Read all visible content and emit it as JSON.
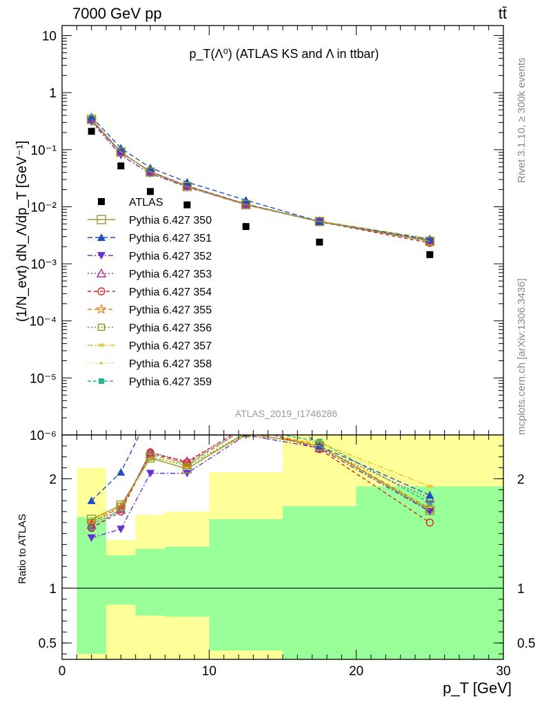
{
  "header": {
    "left": "7000 GeV pp",
    "right": "tt̄"
  },
  "side_texts": {
    "rivet": "Rivet 3.1.10, ≥ 300k events",
    "mcplots": "mcplots.cern.ch [arXiv:1306.3436]"
  },
  "chart_data": {
    "type": "scatter",
    "title": "p_T(Λ⁰) (ATLAS KS and Λ in ttbar)",
    "analysis_id": "ATLAS_2019_I1746286",
    "xlabel": "p_T [GeV]",
    "ylabel": "(1/N_evt) dN_Λ/dp_T [GeV⁻¹]",
    "ratio_ylabel": "Ratio to ATLAS",
    "xlim": [
      0,
      30
    ],
    "ylim_main": [
      1e-06,
      15
    ],
    "y_scale": "log",
    "ylim_ratio": [
      0.35,
      2.4
    ],
    "x_ticks": [
      "0",
      "10",
      "20",
      "30"
    ],
    "y_ticks_main": [
      "10",
      "1",
      "10⁻¹",
      "10⁻²",
      "10⁻³",
      "10⁻⁴",
      "10⁻⁵",
      "10⁻⁶"
    ],
    "y_ticks_ratio": [
      "2",
      "1",
      "0.5"
    ],
    "x_bins": [
      [
        1,
        3
      ],
      [
        3,
        5
      ],
      [
        5,
        7
      ],
      [
        7,
        10
      ],
      [
        10,
        15
      ],
      [
        15,
        20
      ],
      [
        20,
        30
      ]
    ],
    "x": [
      2,
      4,
      6,
      8.5,
      12.5,
      17.5,
      25
    ],
    "data": {
      "name": "ATLAS",
      "values": [
        0.21,
        0.052,
        0.0185,
        0.0108,
        0.0045,
        0.0024,
        0.00145
      ]
    },
    "ratio_band_green": [
      [
        0.4,
        1.65
      ],
      [
        0.85,
        1.3
      ],
      [
        0.75,
        1.36
      ],
      [
        0.74,
        1.38
      ],
      [
        0.43,
        1.63
      ],
      [
        0.35,
        1.75
      ],
      [
        0.35,
        1.93
      ]
    ],
    "ratio_band_yellow": [
      [
        0.35,
        2.1
      ],
      [
        0.35,
        1.44
      ],
      [
        0.35,
        1.67
      ],
      [
        0.35,
        1.7
      ],
      [
        0.35,
        2.06
      ],
      [
        0.35,
        2.4
      ],
      [
        0.35,
        2.4
      ]
    ],
    "series": [
      {
        "name": "Pythia 6.427 350",
        "color": "#9a9a2e",
        "dash": "",
        "marker": "square-open",
        "ratio": [
          1.63,
          1.76,
          2.19,
          2.09,
          2.42,
          2.3,
          1.71
        ]
      },
      {
        "name": "Pythia 6.427 351",
        "color": "#1f4fbf",
        "dash": "7,4",
        "marker": "triangle-filled",
        "ratio": [
          1.8,
          2.06,
          2.6,
          2.5,
          2.9,
          2.3,
          1.85
        ]
      },
      {
        "name": "Pythia 6.427 352",
        "color": "#6a2fcf",
        "dash": "7,3,2,3",
        "marker": "triangle-down-filled",
        "ratio": [
          1.46,
          1.54,
          2.05,
          2.05,
          2.4,
          2.28,
          1.7
        ]
      },
      {
        "name": "Pythia 6.427 353",
        "color": "#b0308f",
        "dash": "2,3",
        "marker": "triangle-open",
        "ratio": [
          1.58,
          1.72,
          2.24,
          2.16,
          2.47,
          2.28,
          1.82
        ]
      },
      {
        "name": "Pythia 6.427 354",
        "color": "#d62020",
        "dash": "5,4",
        "marker": "circle-open",
        "ratio": [
          1.55,
          1.7,
          2.24,
          2.15,
          2.48,
          2.27,
          1.6
        ]
      },
      {
        "name": "Pythia 6.427 355",
        "color": "#f07c10",
        "dash": "6,4",
        "marker": "star-open",
        "ratio": [
          1.6,
          1.74,
          2.22,
          2.14,
          2.46,
          2.3,
          1.73
        ]
      },
      {
        "name": "Pythia 6.427 356",
        "color": "#7a9a1e",
        "dash": "2,3",
        "marker": "square-open-small",
        "ratio": [
          1.6,
          1.75,
          2.2,
          2.12,
          2.42,
          2.3,
          1.72
        ]
      },
      {
        "name": "Pythia 6.427 357",
        "color": "#e8c020",
        "dash": "8,3,2,3",
        "marker": "dash-x",
        "ratio": [
          1.62,
          1.74,
          2.2,
          2.12,
          2.4,
          2.33,
          1.93
        ]
      },
      {
        "name": "Pythia 6.427 358",
        "color": "#c8d030",
        "dash": "1,3",
        "marker": "dot",
        "ratio": [
          1.6,
          1.72,
          2.18,
          2.1,
          2.4,
          2.32,
          1.88
        ]
      },
      {
        "name": "Pythia 6.427 359",
        "color": "#20b890",
        "dash": "5,3",
        "marker": "square-filled",
        "ratio": [
          1.55,
          1.72,
          2.24,
          2.13,
          2.46,
          2.34,
          1.78
        ]
      }
    ]
  }
}
